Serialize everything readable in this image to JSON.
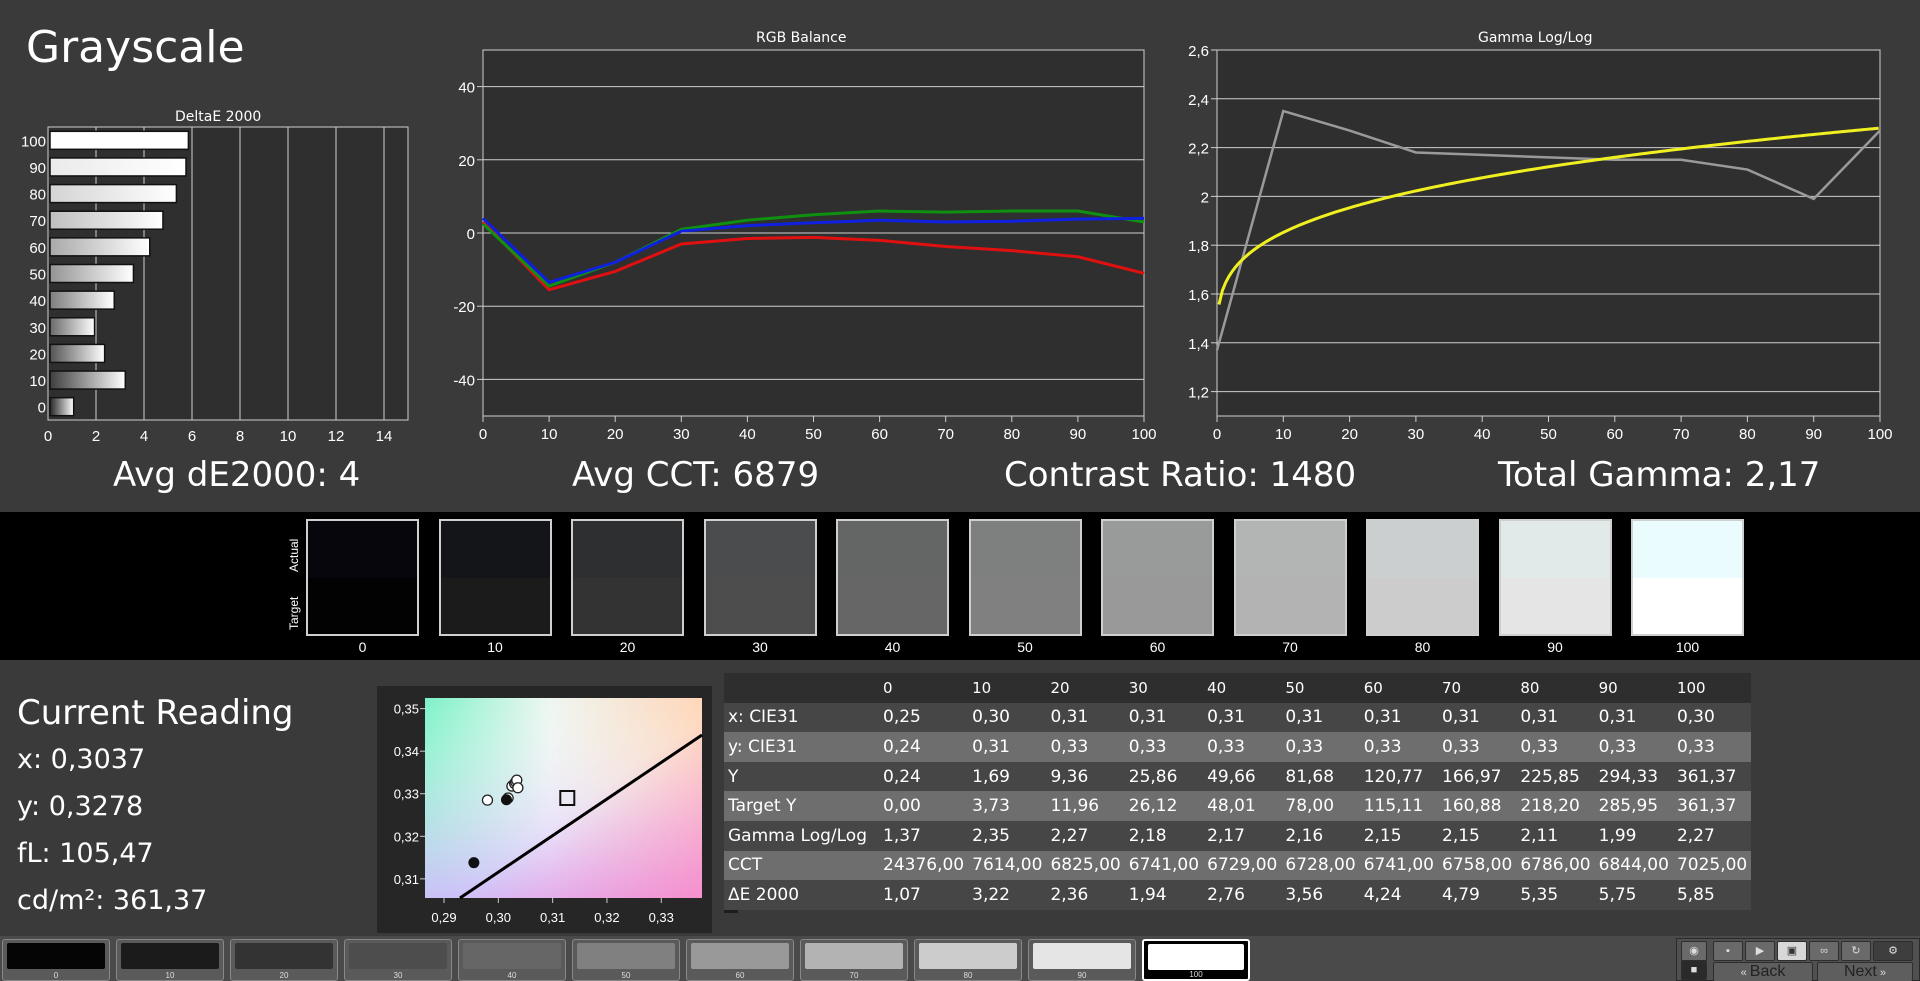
{
  "app_title": "Grayscale",
  "stats": {
    "avg_de": "Avg dE2000: 4",
    "avg_cct": "Avg CCT: 6879",
    "contrast": "Contrast Ratio: 1480",
    "gamma": "Total Gamma: 2,17"
  },
  "chart_data": [
    {
      "type": "bar",
      "title": "DeltaE 2000",
      "orientation": "horizontal",
      "categories": [
        "100",
        "90",
        "80",
        "70",
        "60",
        "50",
        "40",
        "30",
        "20",
        "10",
        "0"
      ],
      "values": [
        5.85,
        5.75,
        5.35,
        4.79,
        4.24,
        3.56,
        2.76,
        1.94,
        2.36,
        3.22,
        1.07
      ],
      "x_ticks": [
        "0",
        "2",
        "4",
        "6",
        "8",
        "10",
        "12",
        "14"
      ],
      "xlim": [
        0,
        15
      ]
    },
    {
      "type": "line",
      "title": "RGB Balance",
      "x": [
        0,
        10,
        20,
        30,
        40,
        50,
        60,
        70,
        80,
        90,
        100
      ],
      "x_ticks": [
        "0",
        "10",
        "20",
        "30",
        "40",
        "50",
        "60",
        "70",
        "80",
        "90",
        "100"
      ],
      "y_ticks": [
        "40",
        "20",
        "0",
        "-20",
        "-40"
      ],
      "ylim": [
        -50,
        50
      ],
      "series": [
        {
          "color": "#e01010",
          "values": [
            3,
            -15.5,
            -10.5,
            -3,
            -1.5,
            -1.2,
            -2,
            -3.7,
            -4.8,
            -6.5,
            -11
          ]
        },
        {
          "color": "#109010",
          "values": [
            2.5,
            -14.5,
            -8,
            1,
            3.5,
            5,
            6,
            5.7,
            6,
            6,
            3
          ]
        },
        {
          "color": "#1020e0",
          "values": [
            4,
            -13.5,
            -8,
            0.5,
            2,
            2.8,
            3.5,
            3,
            3.2,
            3.8,
            4
          ]
        }
      ]
    },
    {
      "type": "line",
      "title": "Gamma Log/Log",
      "x": [
        0,
        10,
        20,
        30,
        40,
        50,
        60,
        70,
        80,
        90,
        100
      ],
      "x_ticks": [
        "0",
        "10",
        "20",
        "30",
        "40",
        "50",
        "60",
        "70",
        "80",
        "90",
        "100"
      ],
      "y_ticks": [
        "2,6",
        "2,4",
        "2,2",
        "2",
        "1,8",
        "1,6",
        "1,4",
        "1,2"
      ],
      "ylim": [
        1.1,
        2.6
      ],
      "series": [
        {
          "color": "#9a9a9a",
          "values": [
            1.37,
            2.35,
            2.27,
            2.18,
            2.17,
            2.16,
            2.15,
            2.15,
            2.11,
            1.99,
            2.27
          ]
        },
        {
          "color": "#f0f020",
          "target_gamma": 2.28
        }
      ]
    },
    {
      "type": "scatter",
      "title": "",
      "x_ticks": [
        "0,29",
        "0,30",
        "0,31",
        "0,32",
        "0,33"
      ],
      "y_ticks": [
        "0,35",
        "0,34",
        "0,33",
        "0,32",
        "0,31"
      ],
      "xlim": [
        0.2865,
        0.3375
      ],
      "ylim": [
        0.3055,
        0.3525
      ],
      "points": [
        {
          "x": 0.298,
          "y": 0.3285
        },
        {
          "x": 0.3018,
          "y": 0.329
        },
        {
          "x": 0.3025,
          "y": 0.3318
        },
        {
          "x": 0.303,
          "y": 0.3324
        },
        {
          "x": 0.3032,
          "y": 0.3328
        },
        {
          "x": 0.3034,
          "y": 0.3332
        },
        {
          "x": 0.3036,
          "y": 0.3314
        }
      ],
      "filled_points": [
        {
          "x": 0.2955,
          "y": 0.3138
        },
        {
          "x": 0.3015,
          "y": 0.3286
        }
      ],
      "target": {
        "x": 0.3127,
        "y": 0.329
      }
    }
  ],
  "swatches": {
    "actual_label": "Actual",
    "target_label": "Target",
    "items": [
      {
        "label": "0",
        "actual": "#06060c",
        "target": "#020202"
      },
      {
        "label": "10",
        "actual": "#141518",
        "target": "#1b1b1b"
      },
      {
        "label": "20",
        "actual": "#2d2f31",
        "target": "#333333"
      },
      {
        "label": "30",
        "actual": "#4a4c4d",
        "target": "#4d4d4d"
      },
      {
        "label": "40",
        "actual": "#646666",
        "target": "#666666"
      },
      {
        "label": "50",
        "actual": "#7e8080",
        "target": "#808080"
      },
      {
        "label": "60",
        "actual": "#999b9a",
        "target": "#999999"
      },
      {
        "label": "70",
        "actual": "#b2b5b4",
        "target": "#b3b3b3"
      },
      {
        "label": "80",
        "actual": "#cbcfcf",
        "target": "#cccccc"
      },
      {
        "label": "90",
        "actual": "#e1e9e9",
        "target": "#e5e5e5"
      },
      {
        "label": "100",
        "actual": "#eafcfd",
        "target": "#ffffff"
      }
    ]
  },
  "current_reading": {
    "title": "Current Reading",
    "x": "x: 0,3037",
    "y": "y: 0,3278",
    "fl": "fL: 105,47",
    "cdm2": "cd/m²: 361,37"
  },
  "table": {
    "headers": [
      "0",
      "10",
      "20",
      "30",
      "40",
      "50",
      "60",
      "70",
      "80",
      "90",
      "100"
    ],
    "rows": [
      {
        "label": "x: CIE31",
        "values": [
          "0,25",
          "0,30",
          "0,31",
          "0,31",
          "0,31",
          "0,31",
          "0,31",
          "0,31",
          "0,31",
          "0,31",
          "0,30"
        ]
      },
      {
        "label": "y: CIE31",
        "values": [
          "0,24",
          "0,31",
          "0,33",
          "0,33",
          "0,33",
          "0,33",
          "0,33",
          "0,33",
          "0,33",
          "0,33",
          "0,33"
        ]
      },
      {
        "label": "Y",
        "values": [
          "0,24",
          "1,69",
          "9,36",
          "25,86",
          "49,66",
          "81,68",
          "120,77",
          "166,97",
          "225,85",
          "294,33",
          "361,37"
        ]
      },
      {
        "label": "Target Y",
        "values": [
          "0,00",
          "3,73",
          "11,96",
          "26,12",
          "48,01",
          "78,00",
          "115,11",
          "160,88",
          "218,20",
          "285,95",
          "361,37"
        ]
      },
      {
        "label": "Gamma Log/Log",
        "values": [
          "1,37",
          "2,35",
          "2,27",
          "2,18",
          "2,17",
          "2,16",
          "2,15",
          "2,15",
          "2,11",
          "1,99",
          "2,27"
        ]
      },
      {
        "label": "CCT",
        "values": [
          "24376,00",
          "7614,00",
          "6825,00",
          "6741,00",
          "6729,00",
          "6728,00",
          "6741,00",
          "6758,00",
          "6786,00",
          "6844,00",
          "7025,00"
        ]
      },
      {
        "label": "ΔE 2000",
        "values": [
          "1,07",
          "3,22",
          "2,36",
          "1,94",
          "2,76",
          "3,56",
          "4,24",
          "4,79",
          "5,35",
          "5,75",
          "5,85"
        ]
      }
    ]
  },
  "bottom_bar": {
    "thumbs": [
      {
        "label": "0",
        "color": "#050505"
      },
      {
        "label": "10",
        "color": "#1b1b1b"
      },
      {
        "label": "20",
        "color": "#333333"
      },
      {
        "label": "30",
        "color": "#4d4d4d"
      },
      {
        "label": "40",
        "color": "#666666"
      },
      {
        "label": "50",
        "color": "#808080"
      },
      {
        "label": "60",
        "color": "#999999"
      },
      {
        "label": "70",
        "color": "#b3b3b3"
      },
      {
        "label": "80",
        "color": "#cccccc"
      },
      {
        "label": "90",
        "color": "#e5e5e5"
      },
      {
        "label": "100",
        "color": "#ffffff"
      }
    ],
    "active_index": 10,
    "back_label": "Back",
    "next_label": "Next"
  }
}
